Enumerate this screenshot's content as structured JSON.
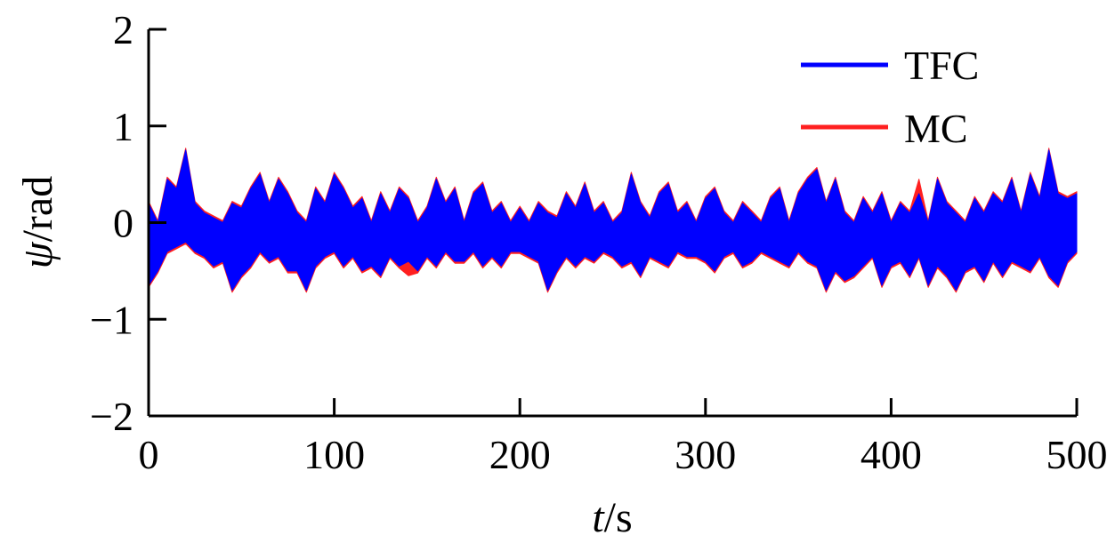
{
  "chart_data": {
    "type": "line",
    "title": "",
    "xlabel": {
      "var": "t",
      "unit": "s"
    },
    "ylabel": {
      "var": "ψ",
      "unit": "rad"
    },
    "xlim": [
      0,
      500
    ],
    "ylim": [
      -2,
      2
    ],
    "xticks": [
      0,
      100,
      200,
      300,
      400,
      500
    ],
    "yticks": [
      2,
      1,
      0,
      -1,
      -2
    ],
    "ytick_labels": [
      "2",
      "1",
      "0",
      "−1",
      "−2"
    ],
    "grid": false,
    "legend_position": "top-right",
    "series": [
      {
        "name": "TFC",
        "color": "#0000ff",
        "x": [
          0,
          5,
          10,
          15,
          20,
          25,
          30,
          35,
          40,
          45,
          50,
          55,
          60,
          65,
          70,
          75,
          80,
          85,
          90,
          95,
          100,
          105,
          110,
          115,
          120,
          125,
          130,
          135,
          140,
          145,
          150,
          155,
          160,
          165,
          170,
          175,
          180,
          185,
          190,
          195,
          200,
          205,
          210,
          215,
          220,
          225,
          230,
          235,
          240,
          245,
          250,
          255,
          260,
          265,
          270,
          275,
          280,
          285,
          290,
          295,
          300,
          305,
          310,
          315,
          320,
          325,
          330,
          335,
          340,
          345,
          350,
          355,
          360,
          365,
          370,
          375,
          380,
          385,
          390,
          395,
          400,
          405,
          410,
          415,
          420,
          425,
          430,
          435,
          440,
          445,
          450,
          455,
          460,
          465,
          470,
          475,
          480,
          485,
          490,
          495,
          500
        ],
        "upper": [
          0.2,
          0.0,
          0.45,
          0.35,
          0.75,
          0.2,
          0.1,
          0.05,
          0.0,
          0.2,
          0.15,
          0.35,
          0.5,
          0.2,
          0.45,
          0.3,
          0.1,
          0.0,
          0.35,
          0.2,
          0.5,
          0.35,
          0.15,
          0.25,
          0.0,
          0.3,
          0.1,
          0.35,
          0.25,
          0.0,
          0.15,
          0.45,
          0.2,
          0.35,
          0.0,
          0.3,
          0.4,
          0.1,
          0.2,
          0.0,
          0.15,
          0.0,
          0.2,
          0.1,
          0.05,
          0.3,
          0.15,
          0.4,
          0.1,
          0.2,
          0.0,
          0.1,
          0.5,
          0.2,
          0.05,
          0.3,
          0.4,
          0.1,
          0.2,
          0.0,
          0.25,
          0.35,
          0.1,
          0.0,
          0.2,
          0.1,
          0.0,
          0.25,
          0.35,
          0.0,
          0.3,
          0.45,
          0.55,
          0.2,
          0.45,
          0.1,
          0.0,
          0.25,
          0.1,
          0.3,
          0.0,
          0.2,
          0.1,
          0.3,
          0.0,
          0.45,
          0.2,
          0.1,
          0.0,
          0.25,
          0.1,
          0.3,
          0.2,
          0.45,
          0.1,
          0.5,
          0.25,
          0.75,
          0.3,
          0.25,
          0.3
        ],
        "lower": [
          -0.65,
          -0.5,
          -0.3,
          -0.25,
          -0.2,
          -0.3,
          -0.35,
          -0.45,
          -0.4,
          -0.7,
          -0.55,
          -0.45,
          -0.3,
          -0.4,
          -0.35,
          -0.5,
          -0.5,
          -0.7,
          -0.45,
          -0.35,
          -0.3,
          -0.45,
          -0.35,
          -0.5,
          -0.45,
          -0.55,
          -0.35,
          -0.45,
          -0.4,
          -0.5,
          -0.35,
          -0.45,
          -0.3,
          -0.4,
          -0.4,
          -0.3,
          -0.45,
          -0.35,
          -0.45,
          -0.3,
          -0.3,
          -0.35,
          -0.4,
          -0.7,
          -0.5,
          -0.35,
          -0.45,
          -0.35,
          -0.4,
          -0.3,
          -0.35,
          -0.45,
          -0.4,
          -0.55,
          -0.35,
          -0.4,
          -0.45,
          -0.3,
          -0.35,
          -0.35,
          -0.4,
          -0.5,
          -0.35,
          -0.3,
          -0.45,
          -0.4,
          -0.3,
          -0.35,
          -0.4,
          -0.45,
          -0.3,
          -0.4,
          -0.45,
          -0.7,
          -0.5,
          -0.6,
          -0.55,
          -0.45,
          -0.35,
          -0.65,
          -0.45,
          -0.4,
          -0.55,
          -0.35,
          -0.65,
          -0.45,
          -0.55,
          -0.7,
          -0.5,
          -0.45,
          -0.6,
          -0.4,
          -0.55,
          -0.4,
          -0.45,
          -0.5,
          -0.35,
          -0.55,
          -0.65,
          -0.4,
          -0.3
        ]
      },
      {
        "name": "MC",
        "color": "#ff2020",
        "x": [
          0,
          5,
          10,
          15,
          20,
          25,
          30,
          35,
          40,
          45,
          50,
          55,
          60,
          65,
          70,
          75,
          80,
          85,
          90,
          95,
          100,
          105,
          110,
          115,
          120,
          125,
          130,
          135,
          140,
          145,
          150,
          155,
          160,
          165,
          170,
          175,
          180,
          185,
          190,
          195,
          200,
          205,
          210,
          215,
          220,
          225,
          230,
          235,
          240,
          245,
          250,
          255,
          260,
          265,
          270,
          275,
          280,
          285,
          290,
          295,
          300,
          305,
          310,
          315,
          320,
          325,
          330,
          335,
          340,
          345,
          350,
          355,
          360,
          365,
          370,
          375,
          380,
          385,
          390,
          395,
          400,
          405,
          410,
          415,
          420,
          425,
          430,
          435,
          440,
          445,
          450,
          455,
          460,
          465,
          470,
          475,
          480,
          485,
          490,
          495,
          500
        ],
        "upper": [
          0.22,
          0.02,
          0.47,
          0.37,
          0.77,
          0.22,
          0.12,
          0.07,
          0.02,
          0.22,
          0.17,
          0.37,
          0.52,
          0.22,
          0.47,
          0.32,
          0.12,
          0.02,
          0.37,
          0.22,
          0.52,
          0.37,
          0.17,
          0.27,
          0.02,
          0.32,
          0.12,
          0.37,
          0.27,
          0.02,
          0.17,
          0.47,
          0.22,
          0.37,
          0.02,
          0.32,
          0.42,
          0.12,
          0.22,
          0.02,
          0.17,
          0.02,
          0.22,
          0.12,
          0.07,
          0.32,
          0.17,
          0.42,
          0.12,
          0.22,
          0.02,
          0.12,
          0.52,
          0.22,
          0.07,
          0.32,
          0.42,
          0.12,
          0.22,
          0.02,
          0.27,
          0.37,
          0.12,
          0.02,
          0.22,
          0.12,
          0.02,
          0.27,
          0.37,
          0.02,
          0.32,
          0.47,
          0.57,
          0.22,
          0.47,
          0.12,
          0.02,
          0.27,
          0.12,
          0.32,
          0.02,
          0.22,
          0.12,
          0.45,
          0.02,
          0.47,
          0.22,
          0.12,
          0.02,
          0.27,
          0.12,
          0.32,
          0.22,
          0.47,
          0.12,
          0.52,
          0.27,
          0.77,
          0.32,
          0.27,
          0.32
        ],
        "lower": [
          -0.67,
          -0.52,
          -0.32,
          -0.27,
          -0.22,
          -0.32,
          -0.37,
          -0.47,
          -0.42,
          -0.72,
          -0.57,
          -0.47,
          -0.32,
          -0.42,
          -0.37,
          -0.52,
          -0.52,
          -0.72,
          -0.47,
          -0.37,
          -0.32,
          -0.47,
          -0.37,
          -0.52,
          -0.47,
          -0.57,
          -0.37,
          -0.47,
          -0.55,
          -0.52,
          -0.37,
          -0.47,
          -0.32,
          -0.42,
          -0.42,
          -0.32,
          -0.47,
          -0.37,
          -0.47,
          -0.32,
          -0.32,
          -0.37,
          -0.42,
          -0.72,
          -0.52,
          -0.37,
          -0.47,
          -0.37,
          -0.42,
          -0.32,
          -0.37,
          -0.47,
          -0.42,
          -0.57,
          -0.37,
          -0.42,
          -0.47,
          -0.32,
          -0.37,
          -0.37,
          -0.42,
          -0.52,
          -0.37,
          -0.32,
          -0.47,
          -0.42,
          -0.32,
          -0.37,
          -0.42,
          -0.47,
          -0.32,
          -0.42,
          -0.47,
          -0.72,
          -0.52,
          -0.62,
          -0.57,
          -0.47,
          -0.37,
          -0.67,
          -0.47,
          -0.42,
          -0.57,
          -0.37,
          -0.67,
          -0.47,
          -0.57,
          -0.72,
          -0.52,
          -0.47,
          -0.62,
          -0.42,
          -0.57,
          -0.42,
          -0.47,
          -0.52,
          -0.37,
          -0.57,
          -0.67,
          -0.42,
          -0.32
        ]
      }
    ]
  }
}
